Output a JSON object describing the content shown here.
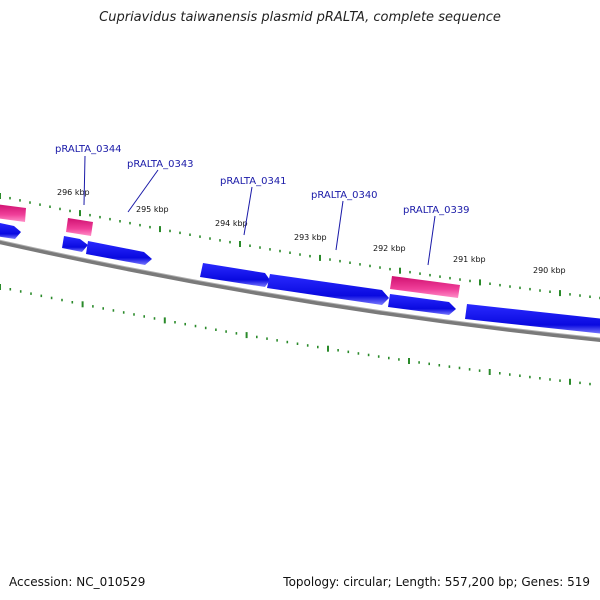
{
  "title": "Cupriavidus taiwanensis plasmid pRALTA, complete sequence",
  "footer": {
    "accession": "Accession: NC_010529",
    "topology": "Topology: circular; Length: 557,200 bp; Genes: 519"
  },
  "colors": {
    "cds": "#1010e6",
    "cds_shadow": "#6a6aff",
    "rna": "#e0207a",
    "rna_light": "#ff77b8",
    "backbone": "#808080",
    "ticks": "#2a8a2a"
  },
  "ticks": [
    {
      "label": "296 kbp",
      "kbp": 296
    },
    {
      "label": "295 kbp",
      "kbp": 295
    },
    {
      "label": "294 kbp",
      "kbp": 294
    },
    {
      "label": "293 kbp",
      "kbp": 293
    },
    {
      "label": "292 kbp",
      "kbp": 292
    },
    {
      "label": "291 kbp",
      "kbp": 291
    },
    {
      "label": "290 kbp",
      "kbp": 290
    }
  ],
  "gene_labels": [
    {
      "name": "pRALTA_0344"
    },
    {
      "name": "pRALTA_0343"
    },
    {
      "name": "pRALTA_0341"
    },
    {
      "name": "pRALTA_0340"
    },
    {
      "name": "pRALTA_0339"
    }
  ]
}
